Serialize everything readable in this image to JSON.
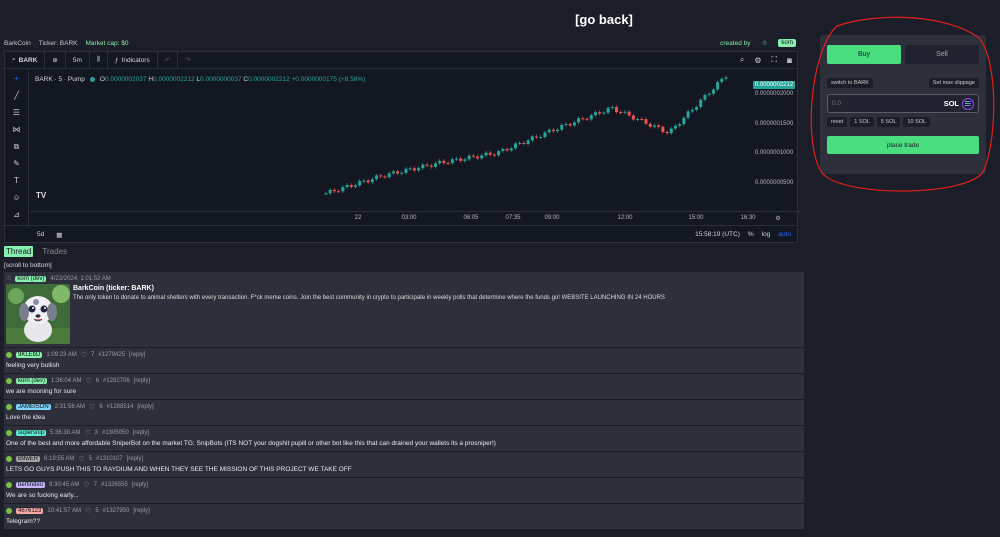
{
  "nav": {
    "go_back": "[go back]"
  },
  "token_info": {
    "name": "BarkCoin",
    "ticker": "Ticker: BARK",
    "market_cap": "Market cap: $0",
    "created_by_label": "created by",
    "creator": "korn"
  },
  "chart": {
    "symbol": "BARK",
    "interval": "5m",
    "indicators_label": "Indicators",
    "series_title": "BARK · 5 · Pump",
    "ohlc": {
      "o_label": "O",
      "o": "0.0000002037",
      "h_label": "H",
      "h": "0.0000002212",
      "l_label": "L",
      "l": "0.0000000037",
      "c_label": "C",
      "c": "0.0000002212",
      "change": "+0.0000000175 (+8.58%)"
    },
    "current_price": "0.0000002212",
    "price_ticks": [
      "0.0000002000",
      "0.0000001500",
      "0.0000001000",
      "0.0000000500"
    ],
    "time_ticks": [
      "22",
      "03:00",
      "06:05",
      "07:35",
      "09:00",
      "12:00",
      "15:00",
      "16:30"
    ],
    "range_label": "5d",
    "clock": "15:58:19 (UTC)",
    "pct_label": "%",
    "log_label": "log",
    "auto_label": "auto",
    "up_color": "#26a69a",
    "down_color": "#ef5350"
  },
  "chart_data": {
    "type": "line",
    "title": "BARK · 5 · Pump",
    "xlabel": "",
    "ylabel": "",
    "x": [
      "22",
      "03:00",
      "06:05",
      "07:35",
      "09:00",
      "12:00",
      "15:00",
      "16:30"
    ],
    "series": [
      {
        "values": [
          5.5e-08,
          8e-08,
          9.8e-08,
          1.12e-07,
          1.45e-07,
          1.75e-07,
          1.4e-07,
          2.21e-07
        ]
      }
    ],
    "ylim": [
      3e-08,
      2.3e-07
    ]
  },
  "tabs": {
    "thread": "Thread",
    "trades": "Trades"
  },
  "scroll_link": "[scroll to bottom]",
  "op": {
    "user": "korn (dev)",
    "time": "4/22/2024, 1:01:52 AM",
    "title": "BarkCoin (ticker: BARK)",
    "description": "The only token to donate to animal shelters with every transaction. F*ck meme coins. Join the best community in crypto to participate in weekly polls that determine where the funds go! WEBSITE LAUNCHING IN 24 HOURS"
  },
  "posts": [
    {
      "user": "9KLEbD",
      "color": "#86efac",
      "time": "1:09:23 AM",
      "likes": "7",
      "id": "#1279425",
      "reply": "[reply]",
      "body": "feeling very bullish"
    },
    {
      "user": "korn (dev)",
      "color": "#86efac",
      "time": "1:36:04 AM",
      "likes": "6",
      "id": "#1282706",
      "reply": "[reply]",
      "body": "we are mooning for sure"
    },
    {
      "user": "JAMEISON",
      "color": "#7dd3fc",
      "time": "2:31:56 AM",
      "likes": "6",
      "id": "#1288514",
      "reply": "[reply]",
      "body": "Love the idea"
    },
    {
      "user": "supersnip",
      "color": "#5eead4",
      "time": "5:36:38 AM",
      "likes": "3",
      "id": "#1305050",
      "reply": "[reply]",
      "body": "One of the best and more affordable SniperBot on the market TG: SnipBots (ITS NOT your dogshit pupill or other bot like this that can drained your wallets its a prosniper!)"
    },
    {
      "user": "B9wER",
      "color": "#a3a3a3",
      "time": "6:19:55 AM",
      "likes": "5",
      "id": "#1310107",
      "reply": "[reply]",
      "body": "LETS GO GUYS PUSH THIS TO RAYDIUM AND WHEN THEY SEE THE MISSION OF THIS PROJECT WE TAKE OFF"
    },
    {
      "user": "bertindeo",
      "color": "#c4b5fd",
      "time": "9:30:45 AM",
      "likes": "7",
      "id": "#1326555",
      "reply": "[reply]",
      "body": "We are so fucking early..."
    },
    {
      "user": "4676123",
      "color": "#fca5a5",
      "time": "10:41:57 AM",
      "likes": "5",
      "id": "#1327950",
      "reply": "[reply]",
      "body": "Telegram??"
    }
  ],
  "trade": {
    "buy": "Buy",
    "sell": "Sell",
    "switch": "switch to BARK",
    "slippage": "Set max slippage",
    "amount_placeholder": "0.0",
    "unit": "SOL",
    "presets": [
      "reset",
      "1 SOL",
      "5 SOL",
      "10 SOL"
    ],
    "place": "place trade"
  }
}
